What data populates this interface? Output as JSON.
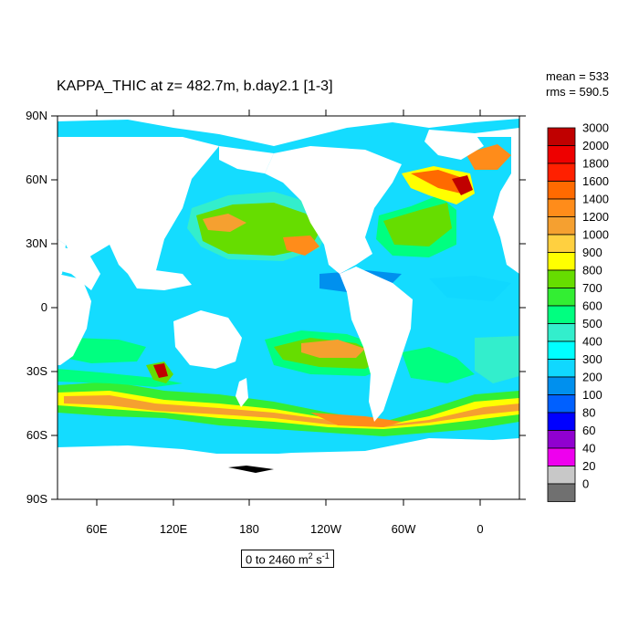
{
  "title": "KAPPA_THIC at z= 482.7m, b.day2.1 [1-3]",
  "stats": {
    "mean": "mean = 533",
    "rms": "rms = 590.5"
  },
  "range": {
    "text": "0 to 2460 m",
    "sup1": "2",
    "mid": " s",
    "sup2": "-1"
  },
  "lat_labels": [
    "90N",
    "60N",
    "30N",
    "0",
    "30S",
    "60S",
    "90S"
  ],
  "lon_labels": [
    "60E",
    "120E",
    "180",
    "120W",
    "60W",
    "0"
  ],
  "colorbar": {
    "labels": [
      "3000",
      "2000",
      "1800",
      "1600",
      "1400",
      "1200",
      "1000",
      "900",
      "800",
      "700",
      "600",
      "500",
      "400",
      "300",
      "200",
      "100",
      "80",
      "60",
      "40",
      "20",
      "0"
    ],
    "colors_top_to_bottom": [
      "#c00000",
      "#ee0000",
      "#ff2000",
      "#ff6a00",
      "#ff8c1a",
      "#f5a030",
      "#ffd040",
      "#ffff00",
      "#66dd00",
      "#33ee33",
      "#00ff80",
      "#33eecc",
      "#00ffff",
      "#10d8ff",
      "#0090ee",
      "#0060ff",
      "#0000ff",
      "#9000d0",
      "#ee00ee",
      "#c8c8c8",
      "#707070"
    ]
  },
  "legend_colors": {
    "ocean_base": "#14dcff",
    "land": "#ffffff"
  }
}
